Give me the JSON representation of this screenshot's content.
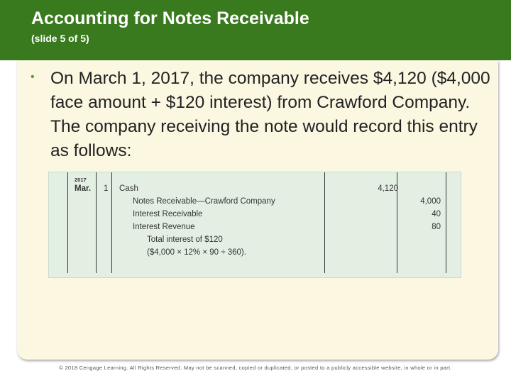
{
  "slide": {
    "title": "Accounting for Notes Receivable",
    "subtitle": "(slide 5 of 5)",
    "bullet": "On March 1, 2017, the company receives $4,120 ($4,000 face amount + $120 interest) from Crawford Company. The company receiving the note would record this entry as follows:"
  },
  "journal": {
    "year": "2017",
    "month": "Mar.",
    "day": "1",
    "rows": [
      {
        "account": "Cash",
        "debit": "4,120",
        "credit": ""
      },
      {
        "account": "Notes Receivable—Crawford Company",
        "debit": "",
        "credit": "4,000"
      },
      {
        "account": "Interest Receivable",
        "debit": "",
        "credit": "40"
      },
      {
        "account": "Interest Revenue",
        "debit": "",
        "credit": "80"
      }
    ],
    "note_line1": "Total interest of $120",
    "note_line2": "($4,000 × 12% × 90 ÷ 360)."
  },
  "footer": "© 2018 Cengage Learning. All Rights Reserved. May not be scanned, copied or duplicated, or posted to a publicly accessible website, in whole or in part."
}
